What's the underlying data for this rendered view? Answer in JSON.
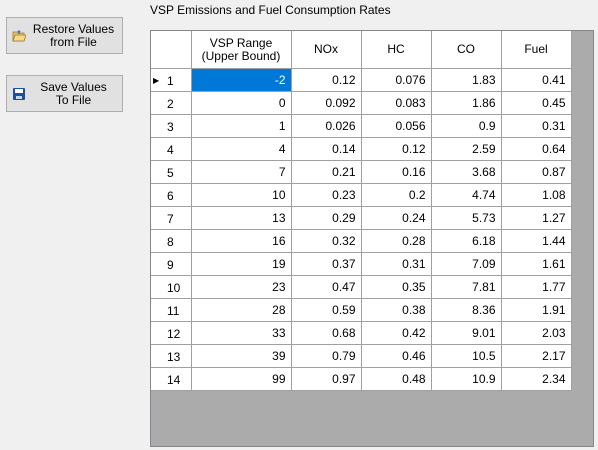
{
  "buttons": {
    "restore": {
      "line1": "Restore Values",
      "line2": "from File"
    },
    "save": {
      "line1": "Save Values",
      "line2": "To File"
    }
  },
  "grid_title": "VSP Emissions and Fuel Consumption Rates",
  "table": {
    "columns": [
      {
        "line1": "VSP Range",
        "line2": "(Upper Bound)"
      },
      {
        "line1": "NOx",
        "line2": ""
      },
      {
        "line1": "HC",
        "line2": ""
      },
      {
        "line1": "CO",
        "line2": ""
      },
      {
        "line1": "Fuel",
        "line2": ""
      }
    ],
    "current_row_indicator": "▶",
    "selected_row": 1,
    "selected_col": 0,
    "rows": [
      {
        "idx": "1",
        "cells": [
          "-2",
          "0.12",
          "0.076",
          "1.83",
          "0.41"
        ]
      },
      {
        "idx": "2",
        "cells": [
          "0",
          "0.092",
          "0.083",
          "1.86",
          "0.45"
        ]
      },
      {
        "idx": "3",
        "cells": [
          "1",
          "0.026",
          "0.056",
          "0.9",
          "0.31"
        ]
      },
      {
        "idx": "4",
        "cells": [
          "4",
          "0.14",
          "0.12",
          "2.59",
          "0.64"
        ]
      },
      {
        "idx": "5",
        "cells": [
          "7",
          "0.21",
          "0.16",
          "3.68",
          "0.87"
        ]
      },
      {
        "idx": "6",
        "cells": [
          "10",
          "0.23",
          "0.2",
          "4.74",
          "1.08"
        ]
      },
      {
        "idx": "7",
        "cells": [
          "13",
          "0.29",
          "0.24",
          "5.73",
          "1.27"
        ]
      },
      {
        "idx": "8",
        "cells": [
          "16",
          "0.32",
          "0.28",
          "6.18",
          "1.44"
        ]
      },
      {
        "idx": "9",
        "cells": [
          "19",
          "0.37",
          "0.31",
          "7.09",
          "1.61"
        ]
      },
      {
        "idx": "10",
        "cells": [
          "23",
          "0.47",
          "0.35",
          "7.81",
          "1.77"
        ]
      },
      {
        "idx": "11",
        "cells": [
          "28",
          "0.59",
          "0.38",
          "8.36",
          "1.91"
        ]
      },
      {
        "idx": "12",
        "cells": [
          "33",
          "0.68",
          "0.42",
          "9.01",
          "2.03"
        ]
      },
      {
        "idx": "13",
        "cells": [
          "39",
          "0.79",
          "0.46",
          "10.5",
          "2.17"
        ]
      },
      {
        "idx": "14",
        "cells": [
          "99",
          "0.97",
          "0.48",
          "10.9",
          "2.34"
        ]
      }
    ]
  },
  "icons": {
    "restore": "folder-open-icon",
    "save": "floppy-disk-icon"
  },
  "colors": {
    "selection": "#0078d7",
    "grid_background": "#ababab"
  }
}
